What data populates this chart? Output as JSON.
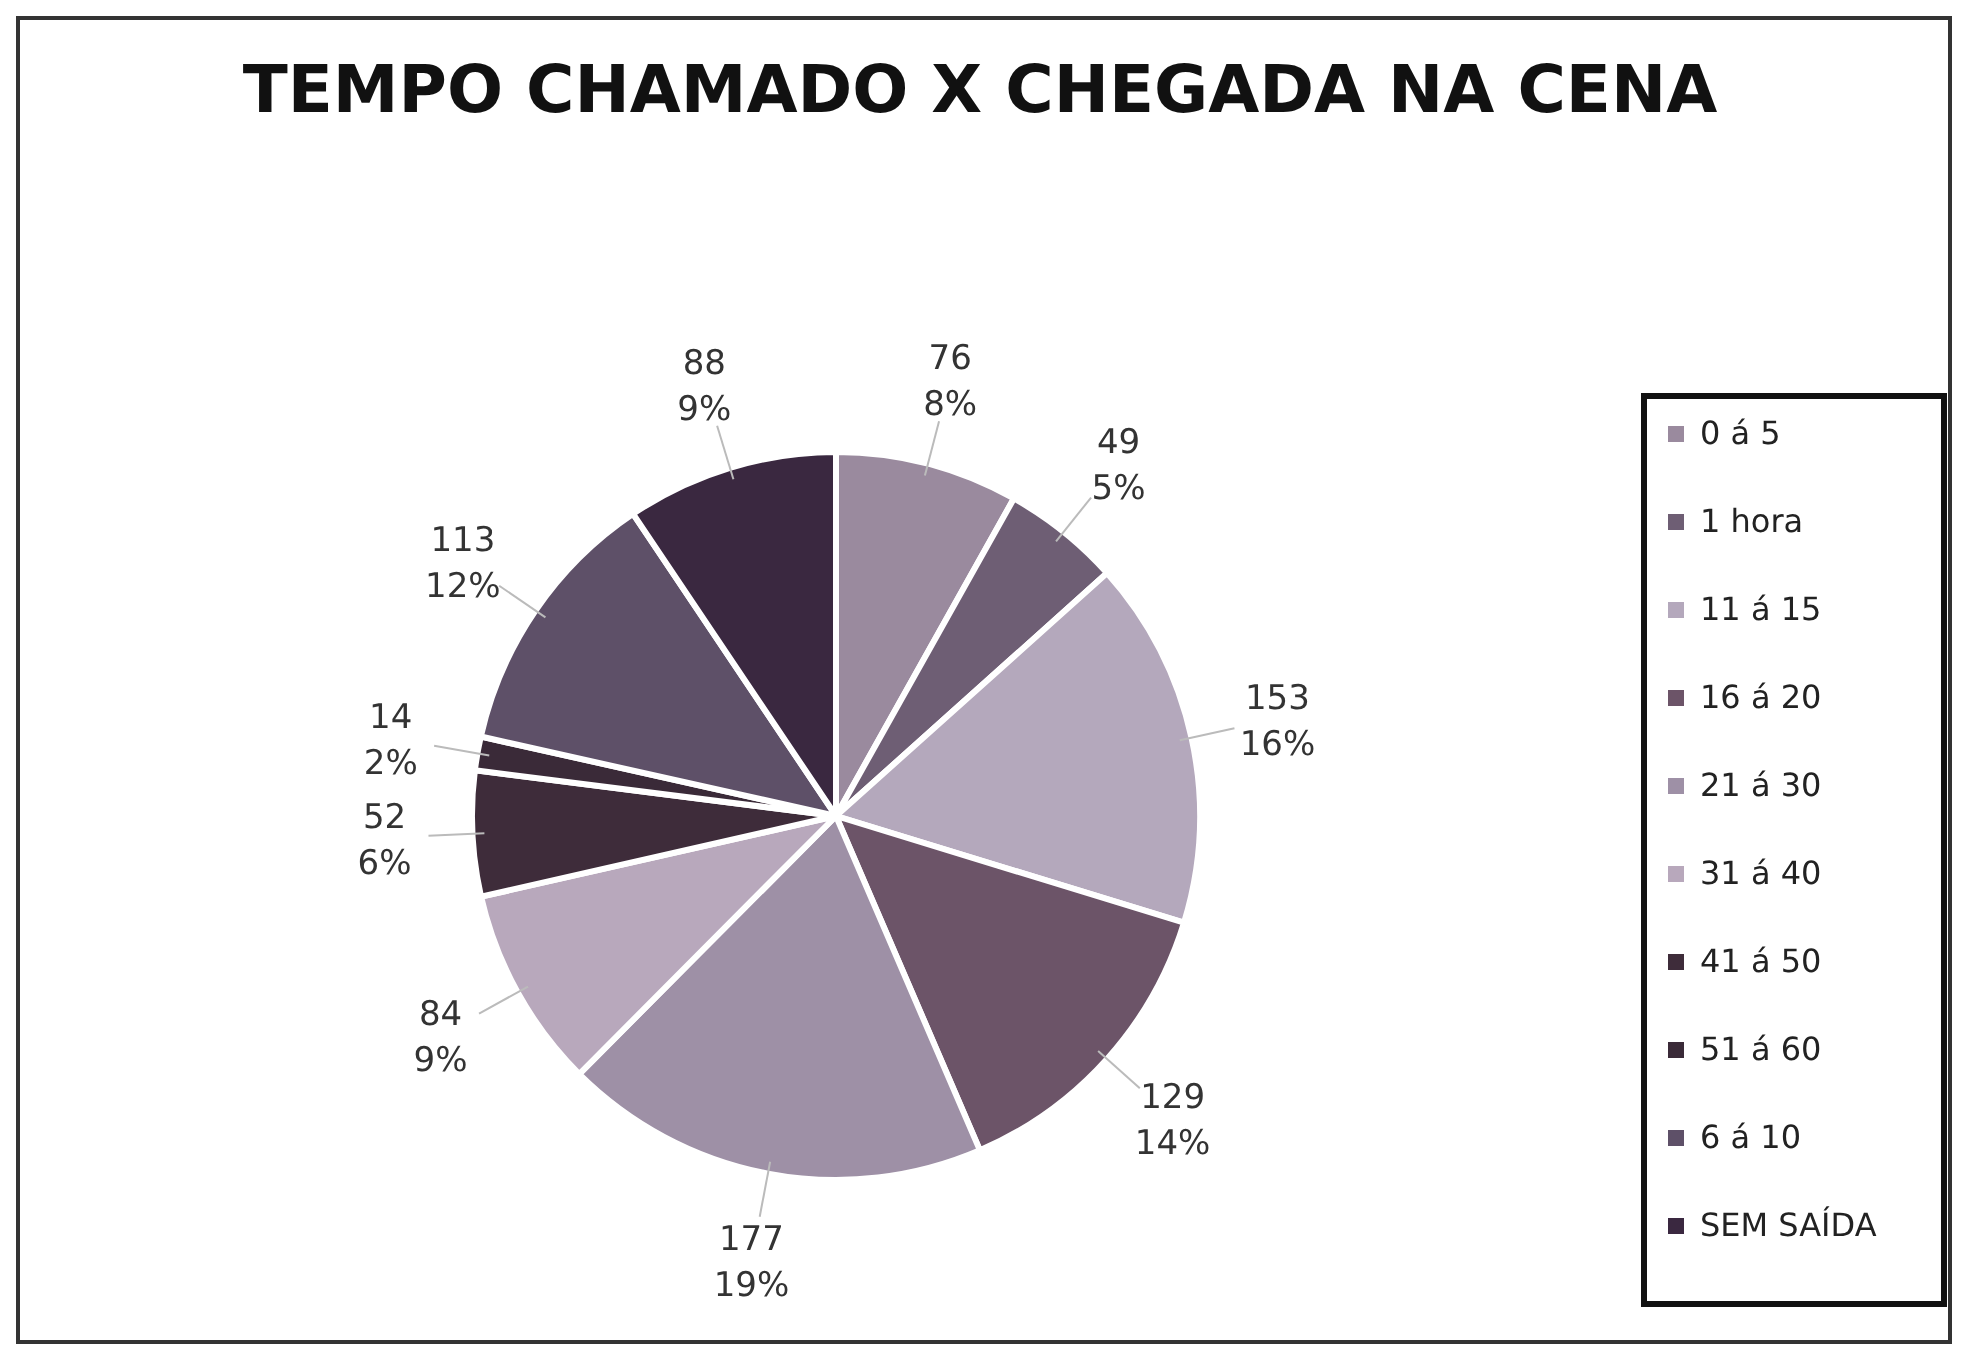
{
  "chart_data": {
    "type": "pie",
    "title": "TEMPO CHAMADO X CHEGADA NA CENA",
    "categories": [
      "0 á 5",
      "1 hora",
      "11 á 15",
      "16 á 20",
      "21 á 30",
      "31 á 40",
      "41 á 50",
      "51 á 60",
      "6 á 10",
      "SEM SAÍDA"
    ],
    "values": [
      76,
      49,
      153,
      129,
      177,
      84,
      52,
      14,
      113,
      88
    ],
    "value_labels": [
      "76\n8%",
      "49\n5%",
      "153\n16%",
      "129\n14%",
      "177\n19%",
      "84\n9%",
      "52\n6%",
      "14\n2%",
      "113\n12%",
      "88\n9%"
    ],
    "colors": [
      "#9a8a9e",
      "#6e5e74",
      "#b4a8bc",
      "#6c5468",
      "#9e90a6",
      "#b8a8bc",
      "#3e2c3a",
      "#3a2a38",
      "#5e5068",
      "#3a2840"
    ],
    "legend": "right"
  }
}
